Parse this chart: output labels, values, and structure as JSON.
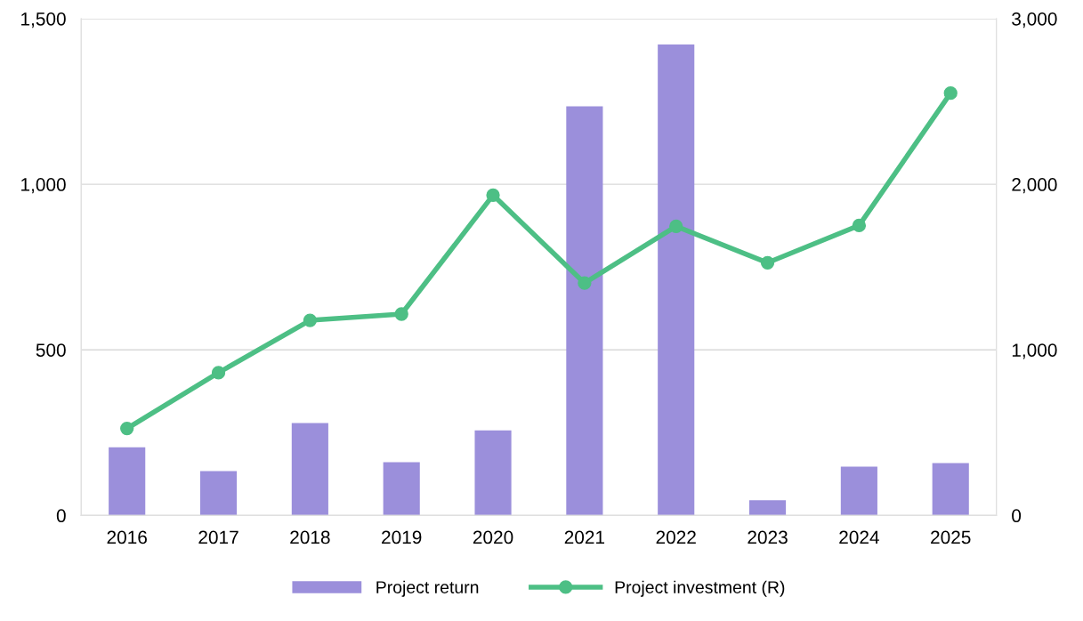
{
  "chart_data": {
    "type": "bar",
    "categories": [
      "2016",
      "2017",
      "2018",
      "2019",
      "2020",
      "2021",
      "2022",
      "2023",
      "2024",
      "2025"
    ],
    "series": [
      {
        "name": "Project return",
        "color": "#9b8fdb",
        "values": [
          206,
          134,
          279,
          161,
          257,
          1235,
          1422,
          46,
          147,
          158
        ]
      },
      {
        "name": "Project investment (R)",
        "type": "line",
        "axis": "y2",
        "color": "#4dbf85",
        "marker": "circle",
        "values": [
          525,
          862,
          1178,
          1216,
          1934,
          1403,
          1746,
          1526,
          1751,
          2550
        ]
      }
    ],
    "ylim": [
      0,
      1500
    ],
    "yticks": [
      0,
      500,
      {
        "value": 1000,
        "label": "1,000"
      },
      {
        "value": 1500,
        "label": "1,500"
      }
    ],
    "y2lim": [
      0,
      3000
    ],
    "y2ticks": [
      0,
      {
        "value": 1000,
        "label": "1,000"
      },
      {
        "value": 2000,
        "label": "2,000"
      },
      {
        "value": 3000,
        "label": "3,000"
      }
    ],
    "grid": "y",
    "legend": "bottom"
  }
}
